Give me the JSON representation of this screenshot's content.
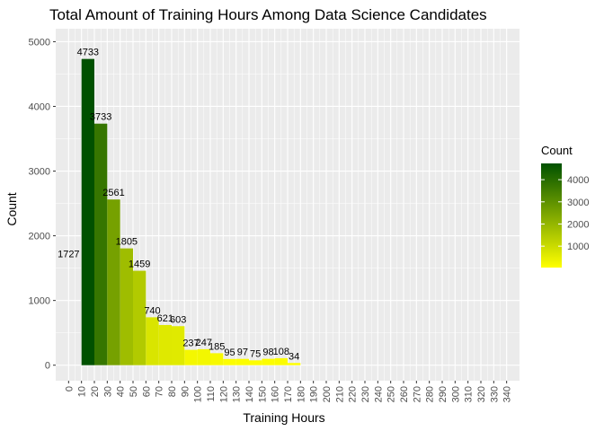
{
  "chart_data": {
    "type": "bar",
    "title": "Total Amount of Training Hours Among Data Science Candidates",
    "xlabel": "Training Hours",
    "ylabel": "Count",
    "x_ticks": [
      0,
      10,
      20,
      30,
      40,
      50,
      60,
      70,
      80,
      90,
      100,
      110,
      120,
      130,
      140,
      150,
      160,
      170,
      180,
      190,
      200,
      210,
      220,
      230,
      240,
      250,
      260,
      270,
      280,
      290,
      300,
      310,
      320,
      330,
      340
    ],
    "y_ticks": [
      0,
      1000,
      2000,
      3000,
      4000,
      5000
    ],
    "xlim": [
      -10,
      350
    ],
    "ylim": [
      -240,
      5200
    ],
    "grid": true,
    "bins": [
      {
        "start": 10,
        "end": 20,
        "value": 4733
      },
      {
        "start": 20,
        "end": 30,
        "value": 3733
      },
      {
        "start": 30,
        "end": 40,
        "value": 2561
      },
      {
        "start": 40,
        "end": 50,
        "value": 1805
      },
      {
        "start": 50,
        "end": 60,
        "value": 1459
      },
      {
        "start": 60,
        "end": 70,
        "value": 740
      },
      {
        "start": 70,
        "end": 80,
        "value": 621
      },
      {
        "start": 80,
        "end": 90,
        "value": 603
      },
      {
        "start": 90,
        "end": 100,
        "value": 237
      },
      {
        "start": 100,
        "end": 110,
        "value": 247
      },
      {
        "start": 110,
        "end": 120,
        "value": 185
      },
      {
        "start": 120,
        "end": 130,
        "value": 95
      },
      {
        "start": 130,
        "end": 140,
        "value": 97
      },
      {
        "start": 140,
        "end": 150,
        "value": 75
      },
      {
        "start": 150,
        "end": 160,
        "value": 98
      },
      {
        "start": 160,
        "end": 170,
        "value": 108
      },
      {
        "start": 170,
        "end": 180,
        "value": 34
      }
    ],
    "annotation": {
      "text": "1727",
      "x": 0,
      "y": 1727
    },
    "legend": {
      "title": "Count",
      "position": "right",
      "ticks": [
        1000,
        2000,
        3000,
        4000
      ],
      "range": [
        34,
        4733
      ],
      "low_color": "#ffff00",
      "high_color": "#005100"
    },
    "colors": {
      "panel": "#ebebeb",
      "grid_major": "#ffffff"
    }
  }
}
